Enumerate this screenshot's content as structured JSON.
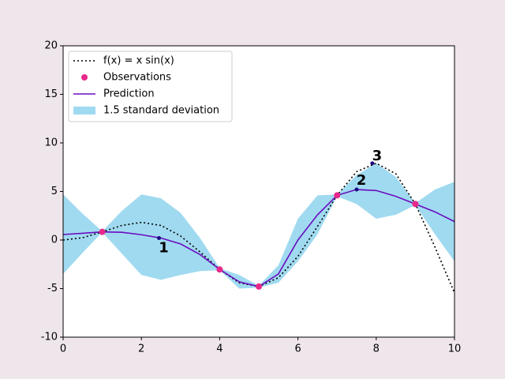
{
  "chart_data": {
    "type": "line",
    "xlim": [
      0,
      10
    ],
    "ylim": [
      -10,
      20
    ],
    "xticks": [
      0,
      2,
      4,
      6,
      8,
      10
    ],
    "yticks": [
      -10,
      -5,
      0,
      5,
      10,
      15,
      20
    ],
    "x": [
      0,
      0.5,
      1,
      1.5,
      2,
      2.5,
      3,
      3.5,
      4,
      4.5,
      5,
      5.5,
      6,
      6.5,
      7,
      7.5,
      8,
      8.5,
      9,
      9.5,
      10
    ],
    "series": [
      {
        "name": "f(x) = x sin(x)",
        "color": "#000000",
        "dash": "dotted",
        "values": [
          0,
          0.24,
          0.84,
          1.5,
          1.82,
          1.5,
          0.42,
          -1.23,
          -3.03,
          -4.4,
          -4.79,
          -3.88,
          -1.68,
          1.4,
          4.6,
          7.04,
          7.91,
          6.82,
          3.71,
          -0.72,
          -5.44
        ]
      },
      {
        "name": "Prediction",
        "color": "#6a0dbf",
        "dash": "solid",
        "values": [
          0.57,
          0.7,
          0.84,
          0.8,
          0.55,
          0.2,
          -0.4,
          -1.5,
          -3.03,
          -4.3,
          -4.79,
          -3.5,
          0,
          2.6,
          4.6,
          5.2,
          5.1,
          4.5,
          3.71,
          2.9,
          1.9
        ]
      }
    ],
    "observations": {
      "name": "Observations",
      "color": "#e8288a",
      "x": [
        1,
        4,
        5,
        7,
        9
      ],
      "y": [
        0.84,
        -3.03,
        -4.79,
        4.6,
        3.71
      ]
    },
    "band": {
      "name": "1.5 standard deviation",
      "color": "#a0daf0",
      "upper": [
        4.7,
        2.7,
        0.9,
        3.0,
        4.7,
        4.3,
        2.8,
        0.2,
        -2.9,
        -3.6,
        -4.7,
        -2.6,
        2.2,
        4.6,
        4.7,
        6.7,
        7.9,
        6.5,
        3.8,
        5.2,
        6.0
      ],
      "lower": [
        -3.5,
        -1.3,
        0.8,
        -1.4,
        -3.6,
        -4.1,
        -3.6,
        -3.2,
        -3.1,
        -5.0,
        -4.9,
        -4.4,
        -2.2,
        0.6,
        4.5,
        3.7,
        2.2,
        2.6,
        3.6,
        0.6,
        -2.2
      ]
    },
    "annotations": [
      {
        "text": "1",
        "x": 2.45,
        "y": 0.2
      },
      {
        "text": "2",
        "x": 7.5,
        "y": 5.2
      },
      {
        "text": "3",
        "x": 7.9,
        "y": 7.9
      }
    ],
    "annotation_color": "#1a0a80",
    "legend": "upper left"
  }
}
